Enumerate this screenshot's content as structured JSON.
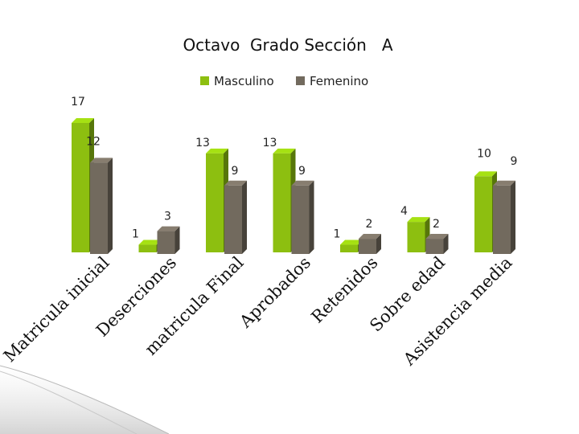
{
  "chart_data": {
    "type": "bar",
    "title": "Octavo  Grado Sección   A",
    "categories": [
      "Matricula inicial",
      "Deserciones",
      "matricula Final",
      "Aprobados",
      "Retenidos",
      "Sobre edad",
      "Asistencia media"
    ],
    "series": [
      {
        "name": "Masculino",
        "values": [
          17,
          1,
          13,
          13,
          1,
          4,
          10
        ]
      },
      {
        "name": "Femenino",
        "values": [
          12,
          3,
          9,
          9,
          2,
          2,
          9
        ]
      }
    ],
    "ylim": [
      0,
      17
    ],
    "grid": false,
    "legend": "top-center",
    "colors": {
      "masculino": "#8dbf10",
      "femenino": "#726a5e"
    }
  }
}
